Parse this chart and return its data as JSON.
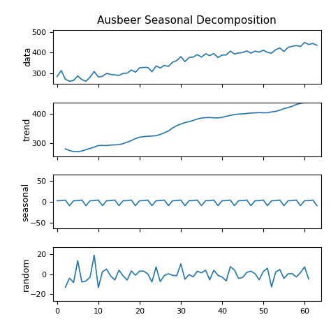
{
  "title": "Ausbeer Seasonal Decomposition",
  "line_color": "#1f77b4",
  "background_color": "#ffffff",
  "data_ylim": [
    250,
    510
  ],
  "data_yticks": [
    300,
    400,
    500
  ],
  "trend_ylim": [
    255,
    440
  ],
  "trend_yticks": [
    300,
    400
  ],
  "seasonal_ylim": [
    -65,
    65
  ],
  "seasonal_yticks": [
    -50,
    0,
    50
  ],
  "random_ylim": [
    -27,
    27
  ],
  "random_yticks": [
    -20,
    0,
    20
  ],
  "xlim": [
    -1,
    64
  ],
  "xticks": [
    0,
    10,
    20,
    30,
    40,
    50,
    60
  ],
  "ylabel_data": "data",
  "ylabel_trend": "trend",
  "ylabel_seasonal": "seasonal",
  "ylabel_random": "random"
}
